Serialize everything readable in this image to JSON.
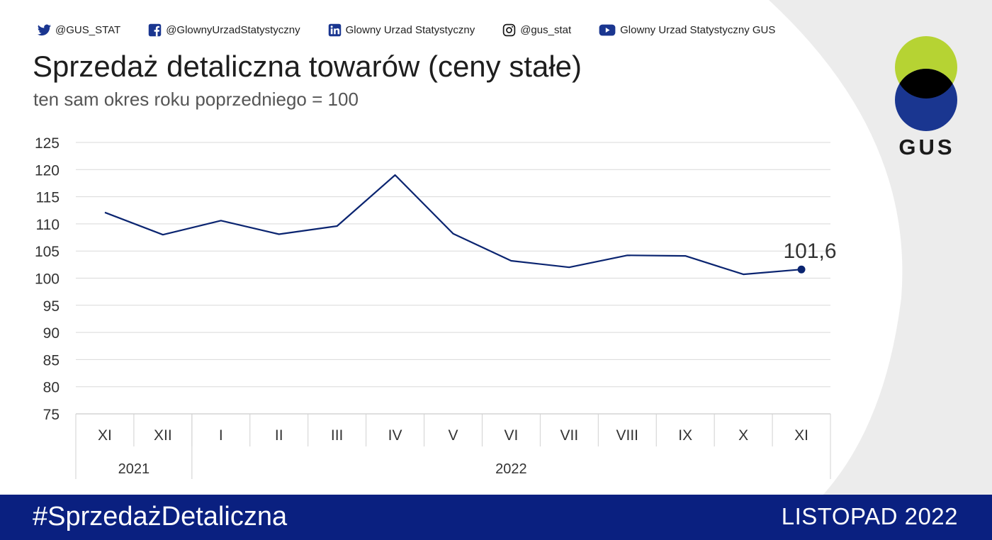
{
  "social": [
    {
      "icon": "twitter-icon",
      "label": "@GUS_STAT"
    },
    {
      "icon": "facebook-icon",
      "label": "@GlownyUrzadStatystyczny"
    },
    {
      "icon": "linkedin-icon",
      "label": "Glowny Urzad Statystyczny"
    },
    {
      "icon": "instagram-icon",
      "label": "@gus_stat"
    },
    {
      "icon": "youtube-icon",
      "label": "Glowny Urzad Statystyczny GUS"
    }
  ],
  "header": {
    "title": "Sprzedaż detaliczna towarów (ceny stałe)",
    "subtitle": "ten sam okres roku poprzedniego = 100"
  },
  "logo": {
    "text": "GUS",
    "colors": {
      "green": "#b6d333",
      "blue": "#1a3690",
      "overlap": "#000000"
    }
  },
  "footer": {
    "hashtag": "#SprzedażDetaliczna",
    "period": "LISTOPAD 2022"
  },
  "colors": {
    "line": "#0a2470",
    "footer": "#0a2080",
    "grid": "#d9d9d9"
  },
  "chart_data": {
    "type": "line",
    "title": "Sprzedaż detaliczna towarów (ceny stałe)",
    "subtitle": "ten sam okres roku poprzedniego = 100",
    "categories": [
      "XI",
      "XII",
      "I",
      "II",
      "III",
      "IV",
      "V",
      "VI",
      "VII",
      "VIII",
      "IX",
      "X",
      "XI"
    ],
    "year_groups": [
      {
        "label": "2021",
        "span": 2
      },
      {
        "label": "2022",
        "span": 11
      }
    ],
    "series": [
      {
        "values": [
          112.1,
          108.0,
          110.6,
          108.1,
          109.6,
          119.0,
          108.2,
          103.2,
          102.0,
          104.2,
          104.1,
          100.7,
          101.6
        ]
      }
    ],
    "ylim": [
      75,
      125
    ],
    "yticks": [
      125,
      120,
      115,
      110,
      105,
      100,
      95,
      90,
      85,
      80,
      75
    ],
    "annotation": {
      "label": "101,6",
      "index": 12
    },
    "grid": true
  }
}
